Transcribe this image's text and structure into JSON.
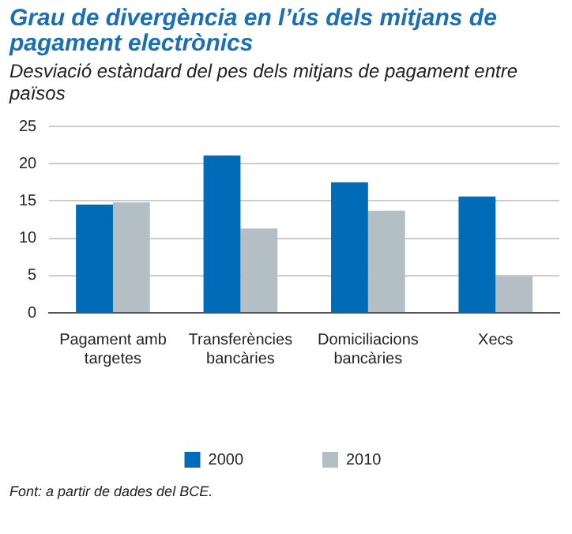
{
  "chart_data": {
    "type": "bar",
    "title": "Grau de divergència en l’ús dels mitjans de pagament electrònics",
    "subtitle": "Desviació estàndard del pes dels mitjans de pagament entre països",
    "categories": [
      "Pagament amb targetes",
      "Transferències bancàries",
      "Domiciliacions bancàries",
      "Xecs"
    ],
    "series": [
      {
        "name": "2000",
        "color": "#006bb6",
        "values": [
          14.5,
          21.1,
          17.5,
          15.6
        ]
      },
      {
        "name": "2010",
        "color": "#b3bfc4",
        "values": [
          14.8,
          11.3,
          13.7,
          4.9
        ]
      }
    ],
    "ylim": [
      0,
      25
    ],
    "yticks": [
      0,
      5,
      10,
      15,
      20,
      25
    ],
    "grid": "y",
    "legend": "bottom",
    "annotations": [
      "Font: a partir de dades del BCE."
    ]
  }
}
